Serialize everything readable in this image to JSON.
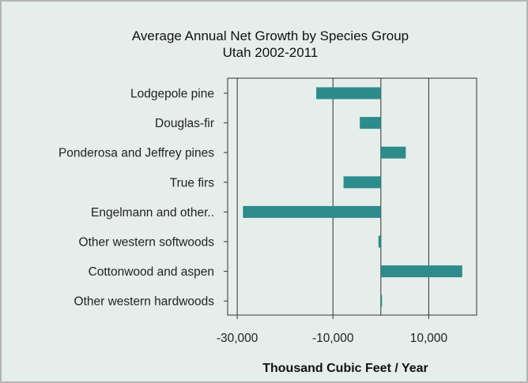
{
  "chart_data": {
    "type": "bar",
    "orientation": "horizontal",
    "title": "Average Annual Net Growth by Species Group",
    "subtitle": "Utah 2002-2011",
    "xlabel": "Thousand Cubic Feet / Year",
    "ylabel": "",
    "categories": [
      "Lodgepole pine",
      "Douglas-fir",
      "Ponderosa and Jeffrey pines",
      "True firs",
      "Engelmann and other..",
      "Other western softwoods",
      "Cottonwood and aspen",
      "Other western hardwoods"
    ],
    "values": [
      -13500,
      -4400,
      5200,
      -7800,
      -28800,
      -500,
      17000,
      200
    ],
    "xlim": [
      -32000,
      20000
    ],
    "xticks": [
      -30000,
      -10000,
      10000
    ],
    "xtick_labels": [
      "-30,000",
      "-10,000",
      "10,000"
    ],
    "bar_color": "#2e8b8b",
    "background_color": "#e5eeeb",
    "gridlines": "vertical"
  }
}
